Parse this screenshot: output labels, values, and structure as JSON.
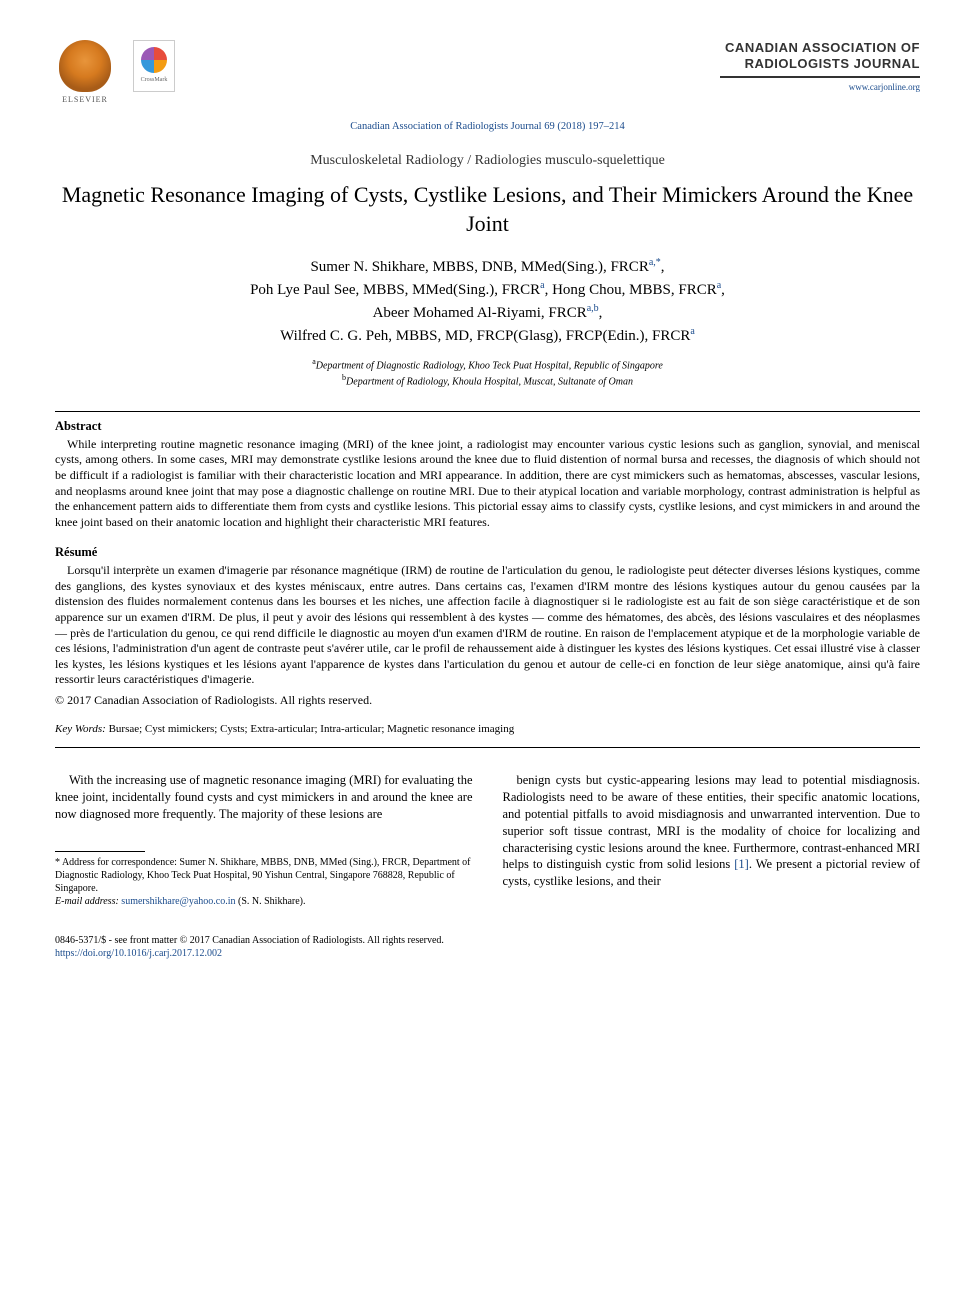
{
  "header": {
    "publisher": "ELSEVIER",
    "crossmark": "CrossMark",
    "journal_name": "CANADIAN ASSOCIATION OF RADIOLOGISTS JOURNAL",
    "journal_url": "www.carjonline.org",
    "citation": "Canadian Association of Radiologists Journal 69 (2018) 197–214"
  },
  "section_label": "Musculoskeletal Radiology / Radiologies musculo-squelettique",
  "title": "Magnetic Resonance Imaging of Cysts, Cystlike Lesions, and Their Mimickers Around the Knee Joint",
  "authors": {
    "a1": {
      "name": "Sumer N. Shikhare, MBBS, DNB, MMed(Sing.), FRCR",
      "aff": "a,",
      "corr": "*"
    },
    "a2": {
      "name": "Poh Lye Paul See, MBBS, MMed(Sing.), FRCR",
      "aff": "a"
    },
    "a3": {
      "name": "Hong Chou, MBBS, FRCR",
      "aff": "a"
    },
    "a4": {
      "name": "Abeer Mohamed Al-Riyami, FRCR",
      "aff": "a,b"
    },
    "a5": {
      "name": "Wilfred C. G. Peh, MBBS, MD, FRCP(Glasg), FRCP(Edin.), FRCR",
      "aff": "a"
    }
  },
  "affiliations": {
    "a": "Department of Diagnostic Radiology, Khoo Teck Puat Hospital, Republic of Singapore",
    "b": "Department of Radiology, Khoula Hospital, Muscat, Sultanate of Oman"
  },
  "abstract": {
    "heading": "Abstract",
    "body": "While interpreting routine magnetic resonance imaging (MRI) of the knee joint, a radiologist may encounter various cystic lesions such as ganglion, synovial, and meniscal cysts, among others. In some cases, MRI may demonstrate cystlike lesions around the knee due to fluid distention of normal bursa and recesses, the diagnosis of which should not be difficult if a radiologist is familiar with their characteristic location and MRI appearance. In addition, there are cyst mimickers such as hematomas, abscesses, vascular lesions, and neoplasms around knee joint that may pose a diagnostic challenge on routine MRI. Due to their atypical location and variable morphology, contrast administration is helpful as the enhancement pattern aids to differentiate them from cysts and cystlike lesions. This pictorial essay aims to classify cysts, cystlike lesions, and cyst mimickers in and around the knee joint based on their anatomic location and highlight their characteristic MRI features."
  },
  "resume": {
    "heading": "Résumé",
    "body": "Lorsqu'il interprète un examen d'imagerie par résonance magnétique (IRM) de routine de l'articulation du genou, le radiologiste peut détecter diverses lésions kystiques, comme des ganglions, des kystes synoviaux et des kystes méniscaux, entre autres. Dans certains cas, l'examen d'IRM montre des lésions kystiques autour du genou causées par la distension des fluides normalement contenus dans les bourses et les niches, une affection facile à diagnostiquer si le radiologiste est au fait de son siège caractéristique et de son apparence sur un examen d'IRM. De plus, il peut y avoir des lésions qui ressemblent à des kystes — comme des hématomes, des abcès, des lésions vasculaires et des néoplasmes — près de l'articulation du genou, ce qui rend difficile le diagnostic au moyen d'un examen d'IRM de routine. En raison de l'emplacement atypique et de la morphologie variable de ces lésions, l'administration d'un agent de contraste peut s'avérer utile, car le profil de rehaussement aide à distinguer les kystes des lésions kystiques. Cet essai illustré vise à classer les kystes, les lésions kystiques et les lésions ayant l'apparence de kystes dans l'articulation du genou et autour de celle-ci en fonction de leur siège anatomique, ainsi qu'à faire ressortir leurs caractéristiques d'imagerie.",
    "copyright": "© 2017 Canadian Association of Radiologists. All rights reserved."
  },
  "keywords": {
    "label": "Key Words:",
    "list": "Bursae; Cyst mimickers; Cysts; Extra-articular; Intra-articular; Magnetic resonance imaging"
  },
  "body": {
    "col1_p1": "With the increasing use of magnetic resonance imaging (MRI) for evaluating the knee joint, incidentally found cysts and cyst mimickers in and around the knee are now diagnosed more frequently. The majority of these lesions are",
    "col2_p1a": "benign cysts but cystic-appearing lesions may lead to potential misdiagnosis. Radiologists need to be aware of these entities, their specific anatomic locations, and potential pitfalls to avoid misdiagnosis and unwarranted intervention. Due to superior soft tissue contrast, MRI is the modality of choice for localizing and characterising cystic lesions around the knee. Furthermore, contrast-enhanced MRI helps to distinguish cystic from solid lesions ",
    "col2_ref": "[1]",
    "col2_p1b": ". We present a pictorial review of cysts, cystlike lesions, and their"
  },
  "footnote": {
    "corr": "* Address for correspondence: Sumer N. Shikhare, MBBS, DNB, MMed (Sing.), FRCR, Department of Diagnostic Radiology, Khoo Teck Puat Hospital, 90 Yishun Central, Singapore 768828, Republic of Singapore.",
    "email_label": "E-mail address:",
    "email": "sumershikhare@yahoo.co.in",
    "email_suffix": "(S. N. Shikhare)."
  },
  "footer": {
    "line1": "0846-5371/$ - see front matter © 2017 Canadian Association of Radiologists. All rights reserved.",
    "doi": "https://doi.org/10.1016/j.carj.2017.12.002"
  },
  "colors": {
    "link": "#1a4b8c",
    "text": "#000000",
    "bg": "#ffffff"
  }
}
